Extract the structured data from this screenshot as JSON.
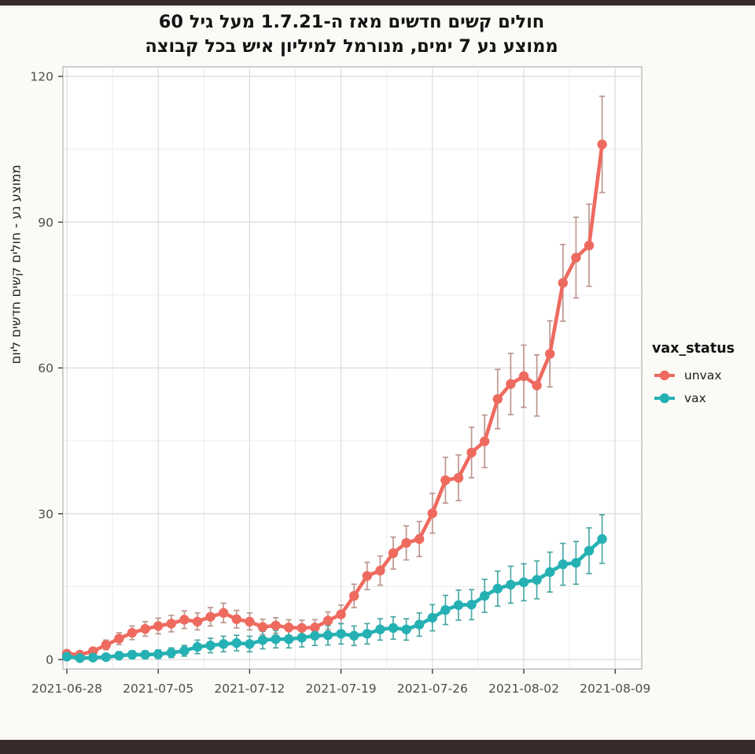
{
  "title": {
    "line1": "חולים קשים חדשים מאז ה-1.7.21 מעל גיל 60",
    "line2": "ממוצע נע 7 ימים, מנורמל למיליון איש בכל קבוצה"
  },
  "legend": {
    "title": "vax_status",
    "items": [
      {
        "label": "unvax"
      },
      {
        "label": "vax"
      }
    ]
  },
  "colors": {
    "unvax": "#ee6a5f",
    "vax": "#25b1b4",
    "unvax_errorbar": "#bd968f",
    "vax_errorbar": "#4aa8a6",
    "frame_bar": "#382a28",
    "background": "#fbfaf6",
    "panel": "#ffffff",
    "panel_border": "#b3b3b3",
    "grid_major": "#dcdcdc",
    "grid_minor": "#ececec",
    "axis_text": "#4d4d4d",
    "tick_mark": "#2f2f2f"
  },
  "chart_data": {
    "type": "line",
    "title": "חולים קשים חדשים מאז ה-1.7.21 מעל גיל 60 — ממוצע נע 7 ימים, מנורמל למיליון איש בכל קבוצה",
    "ylabel": "ממוצע נע - חולים קשים חדשים ליום",
    "xlabel": "",
    "grid": true,
    "error_bars": true,
    "legend_position": "right",
    "ylim": [
      0,
      120
    ],
    "y_ticks": [
      0,
      30,
      60,
      90,
      120
    ],
    "x_ticks": {
      "labels": [
        "2021-06-28",
        "2021-07-05",
        "2021-07-12",
        "2021-07-19",
        "2021-07-26",
        "2021-08-02",
        "2021-08-09"
      ],
      "days": [
        0,
        7,
        14,
        21,
        28,
        35,
        42
      ]
    },
    "x_minor_days": [
      3.5,
      10.5,
      17.5,
      24.5,
      31.5,
      38.5
    ],
    "y_minor": [
      15,
      45,
      75,
      105
    ],
    "x_is_daily_index_from": "2021-06-28",
    "series": [
      {
        "name": "unvax",
        "color": "#ee6a5f",
        "errorbar_color": "#bd968f",
        "values": [
          1.2,
          1.0,
          1.7,
          3.0,
          4.3,
          5.5,
          6.3,
          6.9,
          7.4,
          8.2,
          7.8,
          8.8,
          9.6,
          8.3,
          7.8,
          6.7,
          7.0,
          6.6,
          6.5,
          6.6,
          8.0,
          9.3,
          13.1,
          17.2,
          18.3,
          21.9,
          24.0,
          24.8,
          30.1,
          36.9,
          37.4,
          42.6,
          44.9,
          53.6,
          56.7,
          58.3,
          56.4,
          62.9,
          77.5,
          82.7,
          85.2,
          106.0
        ],
        "lo": [
          0.6,
          0.5,
          1.0,
          2.0,
          3.1,
          4.1,
          4.8,
          5.3,
          5.7,
          6.4,
          6.1,
          6.9,
          7.6,
          6.5,
          6.1,
          5.1,
          5.4,
          5.0,
          4.9,
          5.0,
          6.2,
          7.4,
          10.7,
          14.4,
          15.3,
          18.6,
          20.5,
          21.2,
          26.0,
          32.2,
          32.7,
          37.4,
          39.5,
          47.5,
          50.4,
          51.9,
          50.1,
          56.1,
          69.6,
          74.4,
          76.8,
          96.1
        ],
        "hi": [
          1.8,
          1.6,
          2.4,
          4.0,
          5.5,
          6.9,
          7.8,
          8.5,
          9.1,
          10.0,
          9.6,
          10.7,
          11.6,
          10.1,
          9.6,
          8.3,
          8.6,
          8.2,
          8.1,
          8.2,
          9.8,
          11.2,
          15.5,
          20.0,
          21.3,
          25.2,
          27.5,
          28.4,
          34.2,
          41.6,
          42.1,
          47.8,
          50.3,
          59.7,
          63.0,
          64.7,
          62.7,
          69.7,
          85.4,
          91.0,
          93.7,
          115.9
        ]
      },
      {
        "name": "vax",
        "color": "#25b1b4",
        "errorbar_color": "#4aa8a6",
        "values": [
          0.6,
          0.3,
          0.4,
          0.5,
          0.8,
          1.0,
          1.0,
          1.1,
          1.4,
          1.8,
          2.6,
          2.9,
          3.2,
          3.4,
          3.2,
          4.0,
          4.2,
          4.2,
          4.5,
          4.9,
          5.0,
          5.3,
          4.9,
          5.3,
          6.2,
          6.5,
          6.2,
          7.2,
          8.6,
          10.2,
          11.2,
          11.3,
          13.1,
          14.6,
          15.4,
          15.9,
          16.4,
          18.0,
          19.6,
          19.9,
          22.4,
          24.8
        ],
        "lo": [
          0.0,
          0.0,
          0.0,
          0.0,
          0.1,
          0.2,
          0.2,
          0.2,
          0.4,
          0.7,
          1.2,
          1.4,
          1.6,
          1.8,
          1.6,
          2.2,
          2.4,
          2.4,
          2.6,
          2.9,
          3.0,
          3.2,
          2.9,
          3.2,
          4.0,
          4.2,
          4.0,
          4.8,
          5.9,
          7.2,
          8.1,
          8.2,
          9.7,
          11.0,
          11.6,
          12.1,
          12.5,
          13.9,
          15.3,
          15.5,
          17.7,
          19.8
        ],
        "hi": [
          1.2,
          0.8,
          0.9,
          1.1,
          1.6,
          1.8,
          1.8,
          2.0,
          2.4,
          2.9,
          4.0,
          4.4,
          4.8,
          5.0,
          4.8,
          5.8,
          6.0,
          6.0,
          6.4,
          6.9,
          7.0,
          7.4,
          6.9,
          7.4,
          8.4,
          8.8,
          8.4,
          9.6,
          11.3,
          13.2,
          14.3,
          14.4,
          16.5,
          18.2,
          19.2,
          19.7,
          20.3,
          22.1,
          23.9,
          24.3,
          27.1,
          29.8
        ]
      }
    ]
  }
}
